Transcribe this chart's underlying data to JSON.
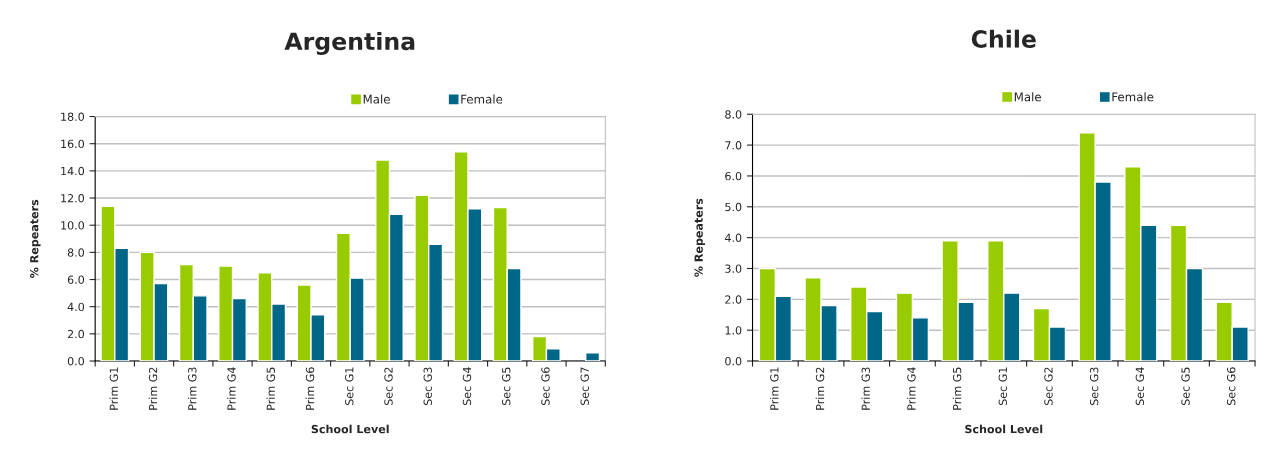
{
  "chart_data": [
    {
      "type": "bar",
      "title": "Argentina",
      "xlabel": "School Level",
      "ylabel": "% Repeaters",
      "categories": [
        "Prim G1",
        "Prim G2",
        "Prim G3",
        "Prim G4",
        "Prim G5",
        "Prim G6",
        "Sec G1",
        "Sec G2",
        "Sec G3",
        "Sec G4",
        "Sec G5",
        "Sec G6",
        "Sec G7"
      ],
      "series": [
        {
          "name": "Male",
          "color": "#99cc00",
          "values": [
            11.4,
            8.0,
            7.1,
            7.0,
            6.5,
            5.6,
            9.4,
            14.8,
            12.2,
            15.4,
            11.3,
            1.8,
            null
          ]
        },
        {
          "name": "Female",
          "color": "#006688",
          "values": [
            8.3,
            5.7,
            4.8,
            4.6,
            4.2,
            3.4,
            6.1,
            10.8,
            8.6,
            11.2,
            6.8,
            0.9,
            0.6
          ]
        }
      ],
      "ylim": [
        0,
        18
      ],
      "yticks": [
        {
          "value": 0,
          "label": "0.0"
        },
        {
          "value": 2,
          "label": "2.0"
        },
        {
          "value": 4,
          "label": "4.0"
        },
        {
          "value": 6,
          "label": "6.0"
        },
        {
          "value": 8,
          "label": "8.0"
        },
        {
          "value": 10,
          "label": "10.0"
        },
        {
          "value": 12,
          "label": "12.0"
        },
        {
          "value": 14,
          "label": "14.0"
        },
        {
          "value": 16,
          "label": "16.0"
        },
        {
          "value": 18,
          "label": "18.0"
        }
      ],
      "grid": "y",
      "legend": "top"
    },
    {
      "type": "bar",
      "title": "Chile",
      "xlabel": "School Level",
      "ylabel": "% Repeaters",
      "categories": [
        "Prim G1",
        "Prim G2",
        "Prim G3",
        "Prim G4",
        "Prim G5",
        "Sec G1",
        "Sec G2",
        "Sec G3",
        "Sec G4",
        "Sec G5",
        "Sec G6"
      ],
      "series": [
        {
          "name": "Male",
          "color": "#99cc00",
          "values": [
            3.0,
            2.7,
            2.4,
            2.2,
            3.9,
            3.9,
            1.7,
            7.4,
            6.3,
            4.4,
            1.9
          ]
        },
        {
          "name": "Female",
          "color": "#006688",
          "values": [
            2.1,
            1.8,
            1.6,
            1.4,
            1.9,
            2.2,
            1.1,
            5.8,
            4.4,
            3.0,
            1.1
          ]
        }
      ],
      "ylim": [
        0,
        8
      ],
      "yticks": [
        {
          "value": 0,
          "label": "0.0"
        },
        {
          "value": 1,
          "label": "1.0"
        },
        {
          "value": 2,
          "label": "2.0"
        },
        {
          "value": 3,
          "label": "3.0"
        },
        {
          "value": 4,
          "label": "4.0"
        },
        {
          "value": 5,
          "label": "5.0"
        },
        {
          "value": 6,
          "label": "6.0"
        },
        {
          "value": 7,
          "label": "7.0"
        },
        {
          "value": 8,
          "label": "8.0"
        }
      ],
      "grid": "y",
      "legend": "top"
    }
  ]
}
